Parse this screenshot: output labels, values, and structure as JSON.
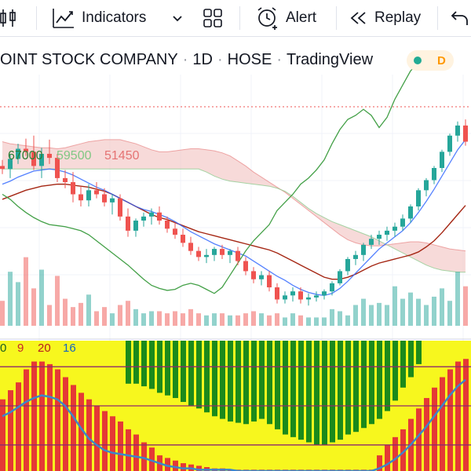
{
  "toolbar": {
    "indicators_label": "Indicators",
    "alert_label": "Alert",
    "replay_label": "Replay"
  },
  "title": {
    "name": "OINT STOCK COMPANY",
    "interval": "1D",
    "exchange": "HOSE",
    "source": "TradingView",
    "badge_letter": "D"
  },
  "legend": {
    "v1": "67000",
    "v2": "59500",
    "v3": "51450"
  },
  "osc_legend": {
    "a": "0",
    "b": "9",
    "c": "20",
    "d": "16"
  },
  "colors": {
    "up": "#26a69a",
    "down": "#ef5350",
    "cloud": "#f2c1c0",
    "osc_yellow": "#f7f71e",
    "osc_green": "#1b8a1b",
    "osc_red": "#e53935",
    "osc_line": "#3d87c9"
  },
  "chart_data": {
    "type": "candlestick",
    "candles": [
      [
        59800,
        60400,
        59000,
        59500
      ],
      [
        59500,
        61000,
        58600,
        60500
      ],
      [
        60500,
        62000,
        60000,
        61500
      ],
      [
        61500,
        62500,
        60800,
        61200
      ],
      [
        61200,
        62800,
        59400,
        59800
      ],
      [
        59800,
        61600,
        58600,
        61000
      ],
      [
        61000,
        62400,
        60000,
        60600
      ],
      [
        60600,
        61000,
        58200,
        58600
      ],
      [
        58600,
        59400,
        57600,
        58200
      ],
      [
        58200,
        59200,
        56200,
        57000
      ],
      [
        57000,
        57800,
        55800,
        56400
      ],
      [
        56400,
        58000,
        55800,
        57400
      ],
      [
        57400,
        58200,
        56600,
        57000
      ],
      [
        57000,
        57600,
        55800,
        56200
      ],
      [
        56200,
        57000,
        55000,
        56600
      ],
      [
        56600,
        57000,
        54400,
        54800
      ],
      [
        54800,
        55600,
        52800,
        53400
      ],
      [
        53400,
        54600,
        52800,
        54400
      ],
      [
        54400,
        55200,
        53800,
        54800
      ],
      [
        54800,
        55600,
        54000,
        55200
      ],
      [
        55200,
        55800,
        54000,
        54400
      ],
      [
        54400,
        54800,
        53200,
        53600
      ],
      [
        53600,
        54200,
        52600,
        53000
      ],
      [
        53000,
        53600,
        51800,
        52200
      ],
      [
        52200,
        52800,
        51000,
        51400
      ],
      [
        51400,
        51800,
        50400,
        50800
      ],
      [
        50800,
        51600,
        50200,
        51000
      ],
      [
        51000,
        51800,
        50400,
        51600
      ],
      [
        51600,
        52000,
        50600,
        51000
      ],
      [
        51000,
        51600,
        50200,
        51400
      ],
      [
        51400,
        51800,
        50000,
        50400
      ],
      [
        50400,
        50800,
        49000,
        49400
      ],
      [
        49400,
        49800,
        48200,
        48600
      ],
      [
        48600,
        49400,
        48000,
        49000
      ],
      [
        49000,
        49400,
        47400,
        47800
      ],
      [
        47800,
        48200,
        46200,
        46600
      ],
      [
        46600,
        47400,
        46200,
        47000
      ],
      [
        47000,
        47800,
        46400,
        47400
      ],
      [
        47400,
        47800,
        46200,
        46600
      ],
      [
        46600,
        47200,
        46000,
        46800
      ],
      [
        46800,
        47400,
        46400,
        47000
      ],
      [
        47000,
        47600,
        46600,
        47400
      ],
      [
        47400,
        48400,
        47000,
        48200
      ],
      [
        48200,
        49600,
        48000,
        49400
      ],
      [
        49400,
        50800,
        49000,
        50600
      ],
      [
        50600,
        51400,
        50000,
        51000
      ],
      [
        51000,
        52200,
        50400,
        52000
      ],
      [
        52000,
        53000,
        51600,
        52600
      ],
      [
        52600,
        53400,
        52000,
        53000
      ],
      [
        53000,
        53800,
        52400,
        53400
      ],
      [
        53400,
        54200,
        52800,
        53800
      ],
      [
        53800,
        55000,
        53400,
        54600
      ],
      [
        54600,
        56000,
        54200,
        55800
      ],
      [
        55800,
        57600,
        55400,
        57400
      ],
      [
        57400,
        58600,
        56800,
        58400
      ],
      [
        58400,
        59800,
        58000,
        59600
      ],
      [
        59600,
        61400,
        59200,
        61200
      ],
      [
        61200,
        63000,
        60800,
        62800
      ],
      [
        62800,
        64200,
        62200,
        63800
      ],
      [
        63800,
        64400,
        61800,
        62200
      ]
    ],
    "volume": [
      1.2,
      2.6,
      2.1,
      3.3,
      1.8,
      2.7,
      1.0,
      2.4,
      1.3,
      0.9,
      1.1,
      1.5,
      0.7,
      0.9,
      0.6,
      1.0,
      1.2,
      0.8,
      0.6,
      0.7,
      0.7,
      0.6,
      0.7,
      0.6,
      0.8,
      0.6,
      0.5,
      0.6,
      0.6,
      0.5,
      0.5,
      0.6,
      0.7,
      0.6,
      0.5,
      0.6,
      0.4,
      0.6,
      0.5,
      0.4,
      0.4,
      0.4,
      0.8,
      0.7,
      0.5,
      1.0,
      1.3,
      1.0,
      1.1,
      1.0,
      1.9,
      1.3,
      1.6,
      1.3,
      1.0,
      1.4,
      1.8,
      1.2,
      2.6,
      1.9
    ],
    "tenkan": [
      58000,
      58300,
      58700,
      59000,
      59300,
      59400,
      59500,
      59400,
      59200,
      58900,
      58500,
      58100,
      57700,
      57400,
      57000,
      56600,
      56200,
      55800,
      55500,
      55300,
      55000,
      54700,
      54300,
      53800,
      53300,
      52900,
      52500,
      52100,
      51800,
      51500,
      51200,
      50900,
      50400,
      49900,
      49400,
      48900,
      48500,
      48000,
      47600,
      47300,
      47100,
      47000,
      47200,
      47700,
      48400,
      49200,
      50000,
      50800,
      51600,
      52200,
      52800,
      53400,
      54200,
      55200,
      56300,
      57500,
      58800,
      60100,
      61400,
      62400
    ],
    "kijun": [
      56500,
      56800,
      57100,
      57400,
      57600,
      57800,
      57900,
      58000,
      58000,
      57900,
      57800,
      57700,
      57500,
      57300,
      57000,
      56600,
      56200,
      55800,
      55400,
      55000,
      54700,
      54500,
      54200,
      53900,
      53600,
      53300,
      53100,
      52900,
      52700,
      52500,
      52300,
      52100,
      51900,
      51700,
      51500,
      51200,
      50800,
      50400,
      50000,
      49600,
      49200,
      48800,
      48600,
      48600,
      48800,
      49100,
      49500,
      49900,
      50200,
      50400,
      50600,
      50800,
      51000,
      51300,
      51800,
      52400,
      53200,
      54100,
      55000,
      55900
    ],
    "span_a": [
      62200,
      62000,
      61900,
      61800,
      61700,
      61600,
      61600,
      61500,
      61600,
      61800,
      62000,
      62200,
      62300,
      62400,
      62400,
      62400,
      62200,
      62000,
      61700,
      61400,
      61200,
      61200,
      61300,
      61400,
      61500,
      61500,
      61400,
      61300,
      61100,
      60800,
      60300,
      59800,
      59200,
      58700,
      58200,
      57700,
      57200,
      56600,
      56000,
      55400,
      54800,
      54200,
      53600,
      53000,
      52500,
      52200,
      52000,
      51900,
      51900,
      52000,
      52100,
      52200,
      52300,
      52300,
      52200,
      52000,
      51800,
      51600,
      51500,
      51400
    ],
    "span_b": [
      59500,
      59500,
      59500,
      59500,
      59500,
      59500,
      59500,
      59500,
      59500,
      59500,
      59500,
      59500,
      59500,
      59500,
      59500,
      59500,
      59500,
      59500,
      59500,
      59500,
      59500,
      59500,
      59500,
      59500,
      59500,
      59500,
      59200,
      58800,
      58500,
      58300,
      58200,
      58100,
      58000,
      57900,
      57800,
      57600,
      57300,
      56800,
      56200,
      55600,
      55100,
      54700,
      54300,
      54000,
      53700,
      53400,
      53100,
      52800,
      52400,
      52000,
      51600,
      51200,
      50800,
      50400,
      50000,
      49700,
      49500,
      49400,
      49300,
      49300
    ],
    "chikou": [
      57000,
      56500,
      55800,
      55200,
      54700,
      54300,
      54000,
      53900,
      53800,
      53600,
      53400,
      53000,
      52400,
      51800,
      51200,
      50600,
      50000,
      49300,
      48600,
      48000,
      47700,
      47500,
      47600,
      48000,
      48200,
      48000,
      47600,
      47200,
      47800,
      49000,
      50200,
      51400,
      52400,
      53200,
      54000,
      55400,
      56200,
      57000,
      58000,
      58600,
      59400,
      60400,
      62000,
      63400,
      64400,
      64800,
      65400,
      64800,
      63600,
      64600,
      66400,
      67800,
      69200,
      70000
    ],
    "osc_green": [
      0,
      0,
      0,
      0,
      0,
      0,
      0,
      0,
      0,
      0,
      0,
      0,
      0,
      0,
      0,
      0,
      33,
      33,
      35,
      37,
      40,
      42,
      44,
      47,
      50,
      52,
      55,
      58,
      60,
      62,
      63,
      64,
      62,
      60,
      64,
      68,
      72,
      74,
      76,
      78,
      80,
      80,
      78,
      76,
      72,
      70,
      67,
      64,
      60,
      54,
      46,
      36,
      28,
      18,
      0,
      0,
      0,
      0,
      0,
      0
    ],
    "osc_red": [
      55,
      62,
      68,
      78,
      84,
      84,
      82,
      78,
      72,
      66,
      60,
      55,
      50,
      46,
      42,
      38,
      32,
      28,
      22,
      18,
      12,
      10,
      8,
      6,
      5,
      4,
      3,
      2,
      2,
      1,
      1,
      1,
      1,
      1,
      1,
      1,
      1,
      1,
      1,
      1,
      1,
      1,
      1,
      1,
      1,
      1,
      1,
      1,
      12,
      20,
      26,
      32,
      40,
      48,
      56,
      64,
      72,
      78,
      84,
      86
    ],
    "osc_line": [
      42,
      45,
      49,
      53,
      56,
      58,
      57,
      55,
      50,
      42,
      33,
      25,
      20,
      16,
      14,
      13,
      12,
      11,
      10,
      8,
      6,
      4,
      3,
      2,
      2,
      1,
      1,
      1,
      1,
      1,
      0,
      0,
      0,
      0,
      0,
      0,
      0,
      0,
      0,
      0,
      0,
      0,
      0,
      0,
      0,
      0,
      0,
      0,
      2,
      5,
      9,
      14,
      20,
      27,
      34,
      42,
      50,
      58,
      65,
      70
    ],
    "osc_levels": [
      80,
      50,
      20
    ],
    "ylim": [
      44000,
      70000
    ],
    "osc_ylim": [
      0,
      100
    ]
  }
}
